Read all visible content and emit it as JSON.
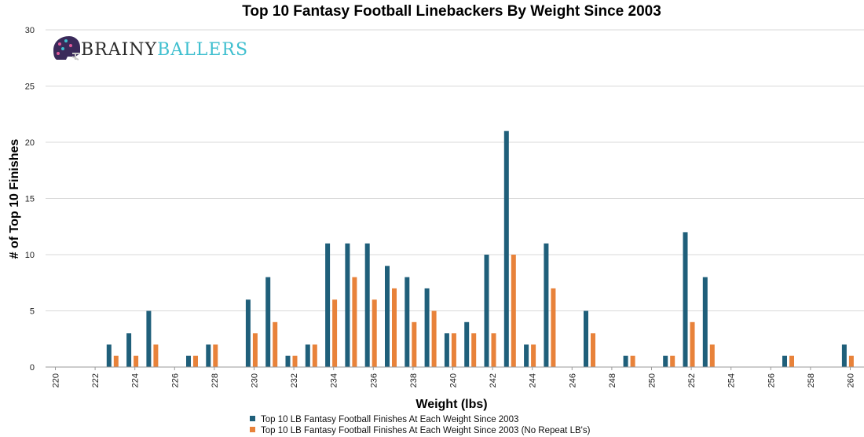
{
  "chart_data": {
    "type": "bar",
    "title": "Top 10 Fantasy Football Linebackers By Weight Since 2003",
    "xlabel": "Weight (lbs)",
    "ylabel": "# of Top 10 Finishes",
    "ylim": [
      0,
      30
    ],
    "yticks": [
      0,
      5,
      10,
      15,
      20,
      25,
      30
    ],
    "xlim": [
      220,
      260
    ],
    "xticks": [
      220,
      222,
      224,
      226,
      228,
      230,
      232,
      234,
      236,
      238,
      240,
      242,
      244,
      246,
      248,
      250,
      252,
      254,
      256,
      258,
      260
    ],
    "grid": "horizontal",
    "legend_position": "bottom",
    "colors": [
      "#1f5f7a",
      "#e8823a"
    ],
    "categories": [
      220,
      221,
      222,
      223,
      224,
      225,
      226,
      227,
      228,
      229,
      230,
      231,
      232,
      233,
      234,
      235,
      236,
      237,
      238,
      239,
      240,
      241,
      242,
      243,
      244,
      245,
      246,
      247,
      248,
      249,
      250,
      251,
      252,
      253,
      254,
      255,
      256,
      257,
      258,
      259
    ],
    "series": [
      {
        "name": "Top 10 LB Fantasy Football Finishes At Each Weight Since 2003",
        "values": [
          0,
          0,
          2,
          3,
          5,
          0,
          1,
          2,
          0,
          6,
          8,
          1,
          2,
          11,
          11,
          11,
          9,
          8,
          7,
          3,
          4,
          10,
          21,
          2,
          11,
          0,
          5,
          0,
          1,
          0,
          1,
          12,
          8,
          0,
          0,
          0,
          1,
          0,
          0,
          2
        ]
      },
      {
        "name": "Top 10 LB Fantasy Football Finishes At Each Weight Since 2003 (No Repeat LB's)",
        "values": [
          0,
          0,
          1,
          1,
          2,
          0,
          1,
          2,
          0,
          3,
          4,
          1,
          2,
          6,
          8,
          6,
          7,
          4,
          5,
          3,
          3,
          3,
          10,
          2,
          7,
          0,
          3,
          0,
          1,
          0,
          1,
          4,
          2,
          0,
          0,
          0,
          1,
          0,
          0,
          1
        ]
      }
    ]
  },
  "logo": {
    "text_part1": "BRAINY",
    "text_part2": "BALLERS",
    "icon": "football-helmet-icon"
  }
}
